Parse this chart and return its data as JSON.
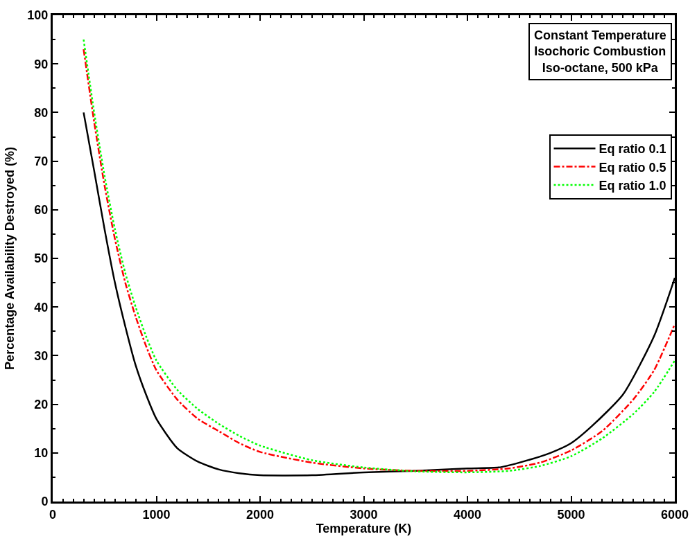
{
  "chart_data": {
    "type": "line",
    "xlabel": "Temperature (K)",
    "ylabel": "Percentage Availability Destroyed (%)",
    "annotations": [
      "Constant Temperature\nIsochoric Combustion\nIso-octane, 500 kPa"
    ],
    "xlim": [
      0,
      6000
    ],
    "xticks": [
      0,
      1000,
      2000,
      3000,
      4000,
      5000,
      6000
    ],
    "ylim": [
      0,
      100
    ],
    "yticks": [
      0,
      10,
      20,
      30,
      40,
      50,
      60,
      70,
      80,
      90,
      100
    ],
    "legend": "top right",
    "series": [
      {
        "name": "Eq ratio 0.1",
        "color": "#000000",
        "line_style": "solid",
        "x": [
          298,
          400,
          500,
          600,
          700,
          800,
          900,
          1000,
          1200,
          1400,
          1600,
          1800,
          2000,
          2500,
          3000,
          3500,
          4000,
          4300,
          4500,
          4800,
          5000,
          5200,
          5500,
          5800,
          6000
        ],
        "values": [
          80,
          68,
          56,
          45,
          36,
          28,
          22,
          17,
          11,
          8.2,
          6.6,
          5.8,
          5.4,
          5.4,
          6.0,
          6.3,
          6.8,
          7.0,
          8.0,
          10,
          12,
          15.5,
          22,
          34,
          46
        ]
      },
      {
        "name": "Eq ratio 0.5",
        "color": "#ff0000",
        "line_style": "dashdot",
        "x": [
          298,
          400,
          500,
          600,
          700,
          800,
          900,
          1000,
          1200,
          1400,
          1600,
          1800,
          2000,
          2500,
          3000,
          3500,
          4000,
          4400,
          4700,
          5000,
          5300,
          5600,
          5800,
          6000
        ],
        "values": [
          93,
          78,
          65,
          54,
          45,
          38,
          32,
          27,
          21,
          17,
          14.5,
          12,
          10.2,
          8,
          6.8,
          6.3,
          6.3,
          6.8,
          8,
          10.5,
          14.5,
          21,
          27,
          36.5
        ]
      },
      {
        "name": "Eq ratio 1.0",
        "color": "#00ff00",
        "line_style": "dotted",
        "x": [
          298,
          400,
          500,
          600,
          700,
          800,
          900,
          1000,
          1200,
          1400,
          1600,
          1800,
          2000,
          2500,
          3000,
          3500,
          4000,
          4400,
          4700,
          5000,
          5300,
          5600,
          5800,
          6000
        ],
        "values": [
          95,
          80,
          67,
          56,
          47,
          40,
          34,
          29,
          23,
          19,
          16,
          13.5,
          11.5,
          8.5,
          7,
          6.2,
          6,
          6.3,
          7.3,
          9.3,
          13,
          18,
          22.5,
          29
        ]
      }
    ]
  }
}
